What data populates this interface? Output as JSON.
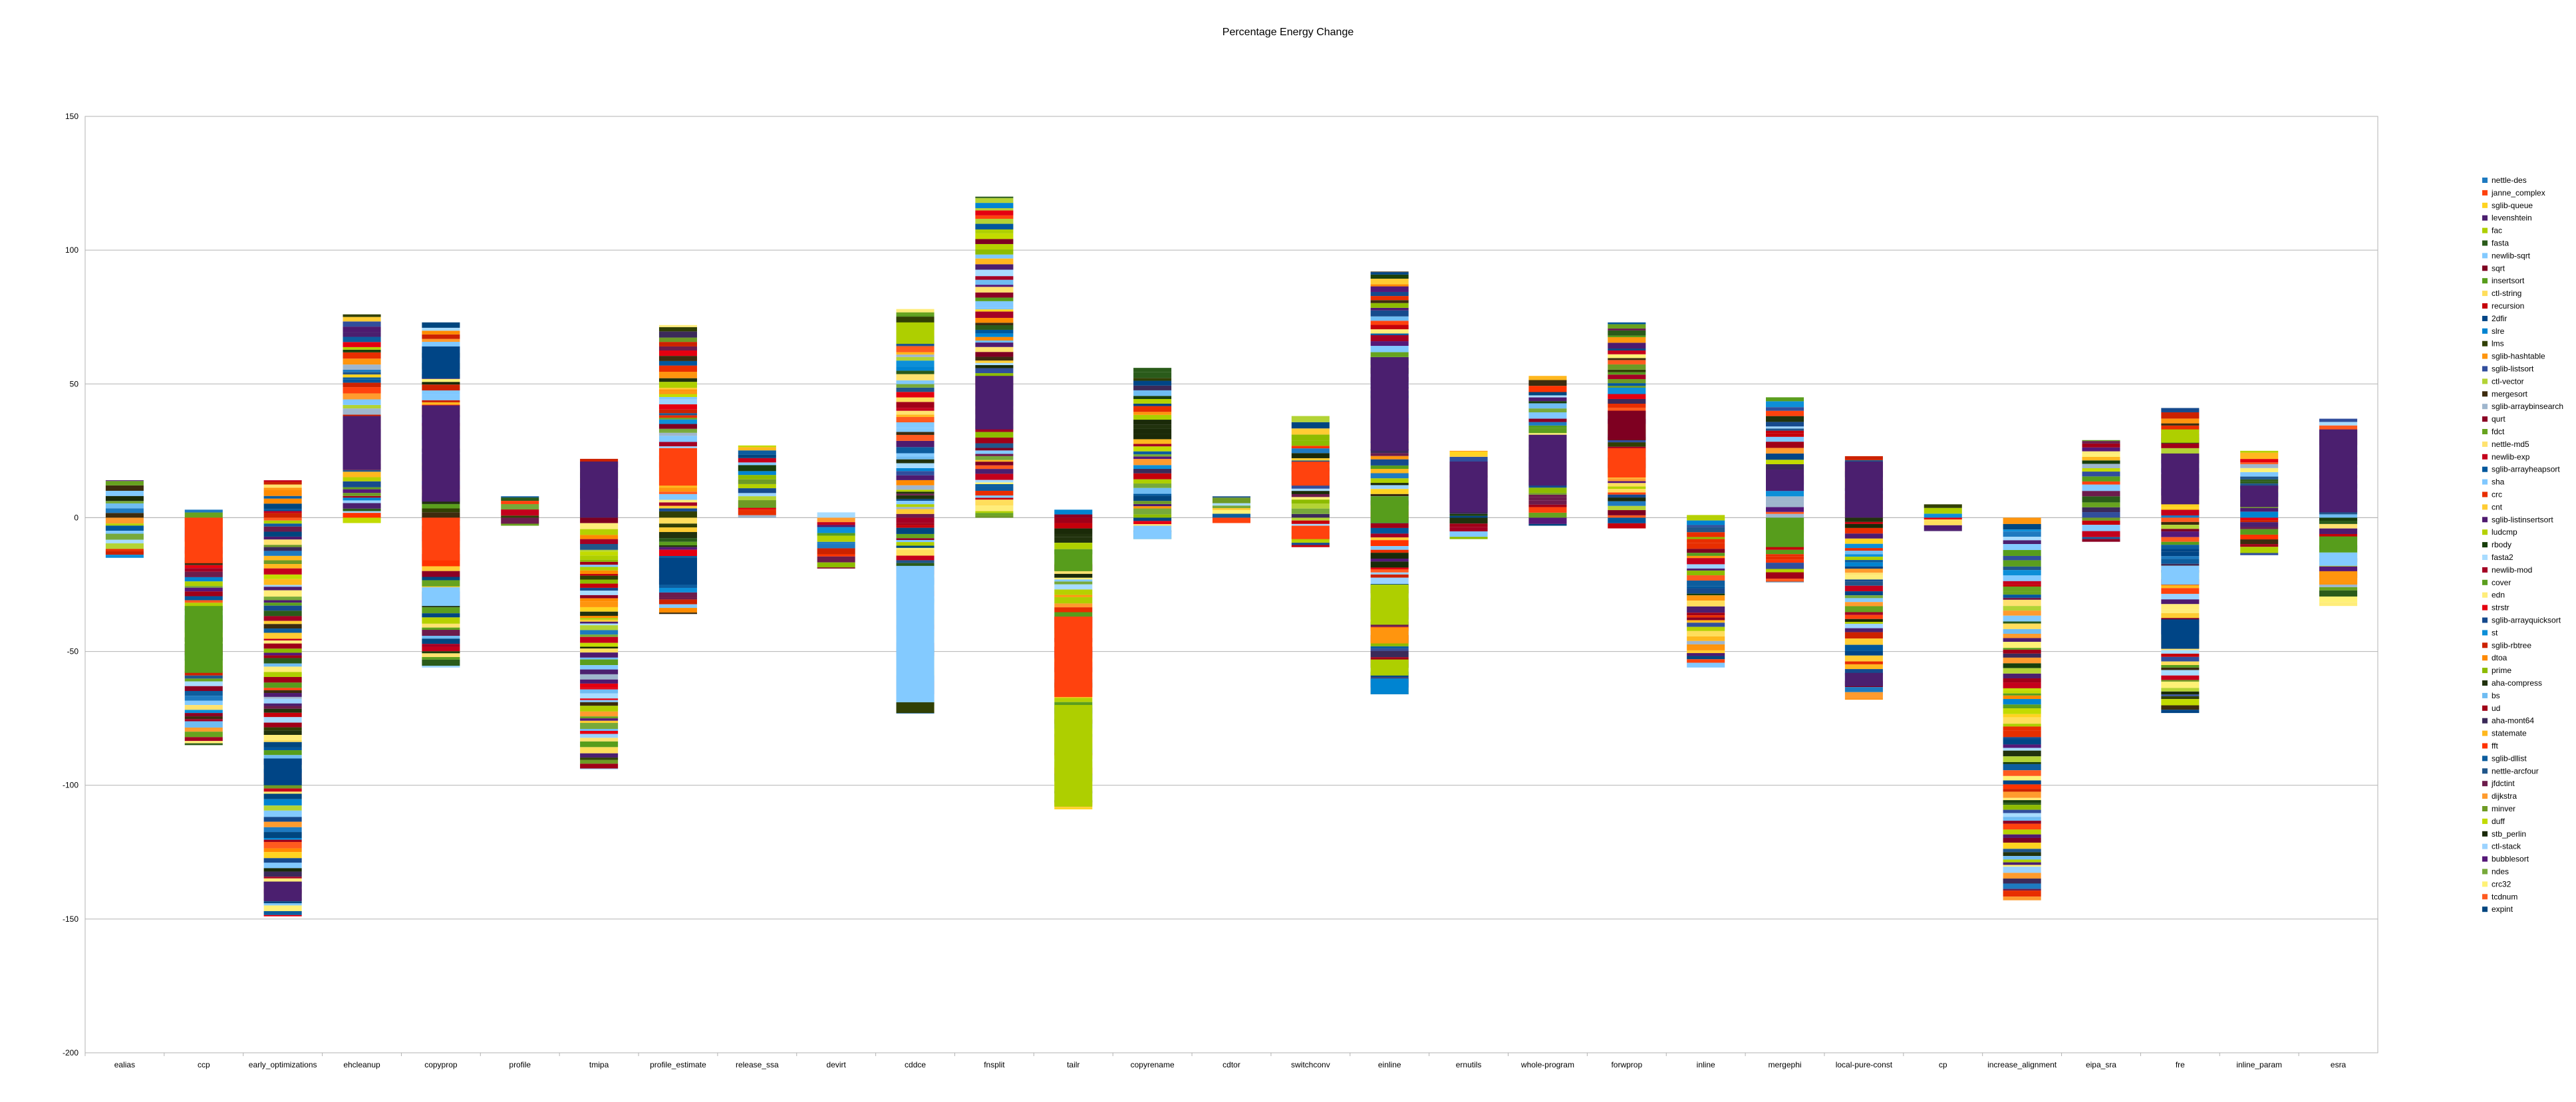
{
  "chart_data": {
    "type": "bar",
    "stacked": true,
    "title": "Percentage Energy Change",
    "xlabel": "",
    "ylabel": "",
    "ylim": [
      -200,
      150
    ],
    "yticks": [
      150,
      100,
      50,
      0,
      -50,
      -100,
      -150,
      -200
    ],
    "grid": true,
    "legend_position": "right",
    "categories": [
      "ealias",
      "ccp",
      "early_optimizations",
      "ehcleanup",
      "copyprop",
      "profile",
      "tmipa",
      "profile_estimate",
      "release_ssa",
      "devirt",
      "cddce",
      "fnsplit",
      "tailr",
      "copyrename",
      "cdtor",
      "switchconv",
      "einline",
      "ernutils",
      "whole-program",
      "forwprop",
      "inline",
      "mergephi",
      "local-pure-const",
      "cp",
      "increase_alignment",
      "eipa_sra",
      "fre",
      "inline_param",
      "esra"
    ],
    "totals": [
      {
        "pos": 14,
        "neg": -15
      },
      {
        "pos": 3,
        "neg": -85
      },
      {
        "pos": 14,
        "neg": -149
      },
      {
        "pos": 76,
        "neg": -2
      },
      {
        "pos": 73,
        "neg": -56
      },
      {
        "pos": 8,
        "neg": -3
      },
      {
        "pos": 22,
        "neg": -94
      },
      {
        "pos": 72,
        "neg": -36
      },
      {
        "pos": 27,
        "neg": 0
      },
      {
        "pos": 2,
        "neg": -19
      },
      {
        "pos": 78,
        "neg": -73
      },
      {
        "pos": 120,
        "neg": 0
      },
      {
        "pos": 3,
        "neg": -109
      },
      {
        "pos": 56,
        "neg": -8
      },
      {
        "pos": 8,
        "neg": -2
      },
      {
        "pos": 38,
        "neg": -11
      },
      {
        "pos": 92,
        "neg": -66
      },
      {
        "pos": 25,
        "neg": -8
      },
      {
        "pos": 53,
        "neg": -3
      },
      {
        "pos": 73,
        "neg": -4
      },
      {
        "pos": 1,
        "neg": -56
      },
      {
        "pos": 45,
        "neg": -24
      },
      {
        "pos": 23,
        "neg": -68
      },
      {
        "pos": 5,
        "neg": -5
      },
      {
        "pos": 0,
        "neg": -143
      },
      {
        "pos": 29,
        "neg": -9
      },
      {
        "pos": 41,
        "neg": -73
      },
      {
        "pos": 25,
        "neg": -14
      },
      {
        "pos": 37,
        "neg": -33
      }
    ],
    "legend": [
      "nettle-des",
      "janne_complex",
      "sglib-queue",
      "levenshtein",
      "fac",
      "fasta",
      "newlib-sqrt",
      "sqrt",
      "insertsort",
      "ctl-string",
      "recursion",
      "2dfir",
      "slre",
      "lms",
      "sglib-hashtable",
      "sglib-listsort",
      "ctl-vector",
      "mergesort",
      "sglib-arraybinsearch",
      "qurt",
      "fdct",
      "nettle-md5",
      "newlib-exp",
      "sglib-arrayheapsort",
      "sha",
      "crc",
      "cnt",
      "sglib-listinsertsort",
      "ludcmp",
      "rbody",
      "fasta2",
      "newlib-mod",
      "cover",
      "edn",
      "strstr",
      "sglib-arrayquicksort",
      "st",
      "sglib-rbtree",
      "dtoa",
      "prime",
      "aha-compress",
      "bs",
      "ud",
      "aha-mont64",
      "statemate",
      "fft",
      "sglib-dllist",
      "nettle-arcfour",
      "jfdctint",
      "dijkstra",
      "minver",
      "duff",
      "stb_perlin",
      "ctl-stack",
      "bubblesort",
      "ndes",
      "crc32",
      "tcdnum",
      "expint"
    ],
    "palette": [
      "#1e7ac0",
      "#ff420e",
      "#ffd320",
      "#4b1f6f",
      "#aecf00",
      "#2a5b1a",
      "#83caff",
      "#7e0021",
      "#579d1c",
      "#ffde5c",
      "#c5000b",
      "#004586",
      "#0084d1",
      "#314004",
      "#ff950e",
      "#314e9c",
      "#b3d335",
      "#3d2c0e",
      "#9fb6cd",
      "#8b0024",
      "#67a31f",
      "#ffe26f",
      "#c4001c",
      "#00579c",
      "#80c8ff",
      "#e82e00",
      "#ffcc33",
      "#4e1a6f",
      "#b5d100",
      "#183f0b",
      "#a8dcff",
      "#a40024",
      "#5b9e1e",
      "#ffed7a",
      "#e40010",
      "#164a8d",
      "#0d8fd8",
      "#cc2200",
      "#ff8a00",
      "#8dbb00",
      "#21320d",
      "#6fbcf2",
      "#a00018",
      "#3b2a59",
      "#ffb81f",
      "#ff3300",
      "#0d5d9e",
      "#21568a",
      "#6c1c4c",
      "#ff9b2e",
      "#6e9a25",
      "#c2db00",
      "#1a2a08",
      "#9bd3ff",
      "#551878",
      "#77a93a",
      "#fff176",
      "#ff5a1f",
      "#00467f"
    ],
    "special_segments": [
      {
        "category": "ccp",
        "from": -58,
        "to": -33,
        "color": "#579d1c"
      },
      {
        "category": "ccp",
        "from": -17,
        "to": 0,
        "color": "#ff420e"
      },
      {
        "category": "early_optimizations",
        "from": -100,
        "to": -90,
        "color": "#004586"
      },
      {
        "category": "early_optimizations",
        "from": -143,
        "to": -136,
        "color": "#4b1f6f"
      },
      {
        "category": "ehcleanup",
        "from": 18,
        "to": 38,
        "color": "#4b1f6f"
      },
      {
        "category": "copyprop",
        "from": 6,
        "to": 42,
        "color": "#4b1f6f"
      },
      {
        "category": "copyprop",
        "from": 52,
        "to": 64,
        "color": "#004586"
      },
      {
        "category": "copyprop",
        "from": -16,
        "to": 0,
        "color": "#ff420e"
      },
      {
        "category": "copyprop",
        "from": -33,
        "to": -26,
        "color": "#83caff"
      },
      {
        "category": "tmipa",
        "from": 0,
        "to": 21,
        "color": "#4b1f6f"
      },
      {
        "category": "profile_estimate",
        "from": 12,
        "to": 26,
        "color": "#ff420e"
      },
      {
        "category": "profile_estimate",
        "from": -25,
        "to": -15,
        "color": "#004586"
      },
      {
        "category": "cddce",
        "from": -69,
        "to": -18,
        "color": "#83caff"
      },
      {
        "category": "cddce",
        "from": -73,
        "to": -69,
        "color": "#314004"
      },
      {
        "category": "cddce",
        "from": 65,
        "to": 73,
        "color": "#aecf00"
      },
      {
        "category": "fnsplit",
        "from": 33,
        "to": 53,
        "color": "#4b1f6f"
      },
      {
        "category": "tailr",
        "from": -67,
        "to": -37,
        "color": "#ff420e"
      },
      {
        "category": "tailr",
        "from": -108,
        "to": -70,
        "color": "#aecf00"
      },
      {
        "category": "tailr",
        "from": -20,
        "to": -12,
        "color": "#579d1c"
      },
      {
        "category": "copyrename",
        "from": -8,
        "to": -3,
        "color": "#83caff"
      },
      {
        "category": "switchconv",
        "from": 12,
        "to": 21,
        "color": "#ff420e"
      },
      {
        "category": "switchconv",
        "from": -8,
        "to": -3,
        "color": "#ff420e"
      },
      {
        "category": "einline",
        "from": 25,
        "to": 60,
        "color": "#4b1f6f"
      },
      {
        "category": "einline",
        "from": -40,
        "to": -25,
        "color": "#aecf00"
      },
      {
        "category": "einline",
        "from": -47,
        "to": -41,
        "color": "#ff950e"
      },
      {
        "category": "einline",
        "from": -59,
        "to": -53,
        "color": "#aecf00"
      },
      {
        "category": "einline",
        "from": -66,
        "to": -60,
        "color": "#0084d1"
      },
      {
        "category": "einline",
        "from": -2,
        "to": 8,
        "color": "#579d1c"
      },
      {
        "category": "ernutils",
        "from": 2,
        "to": 21,
        "color": "#4b1f6f"
      },
      {
        "category": "whole-program",
        "from": 12,
        "to": 31,
        "color": "#4b1f6f"
      },
      {
        "category": "forwprop",
        "from": 29,
        "to": 40,
        "color": "#7e0021"
      },
      {
        "category": "forwprop",
        "from": 15,
        "to": 26,
        "color": "#ff420e"
      },
      {
        "category": "mergephi",
        "from": -11,
        "to": 0,
        "color": "#579d1c"
      },
      {
        "category": "mergephi",
        "from": 10,
        "to": 18,
        "color": "#4b1f6f"
      },
      {
        "category": "local-pure-const",
        "from": 0,
        "to": 21,
        "color": "#4b1f6f"
      },
      {
        "category": "local-pure-const",
        "from": -63,
        "to": -58,
        "color": "#4b1f6f"
      },
      {
        "category": "fre",
        "from": 5,
        "to": 24,
        "color": "#4b1f6f"
      },
      {
        "category": "fre",
        "from": -49,
        "to": -38,
        "color": "#004586"
      },
      {
        "category": "fre",
        "from": -25,
        "to": -18,
        "color": "#83caff"
      },
      {
        "category": "fre",
        "from": 28,
        "to": 33,
        "color": "#aecf00"
      },
      {
        "category": "inline_param",
        "from": 4,
        "to": 12,
        "color": "#4b1f6f"
      },
      {
        "category": "esra",
        "from": 2,
        "to": 33,
        "color": "#4b1f6f"
      },
      {
        "category": "esra",
        "from": -13,
        "to": -7,
        "color": "#579d1c"
      },
      {
        "category": "esra",
        "from": -18,
        "to": -13,
        "color": "#83caff"
      },
      {
        "category": "esra",
        "from": -25,
        "to": -20,
        "color": "#ff950e"
      }
    ]
  }
}
